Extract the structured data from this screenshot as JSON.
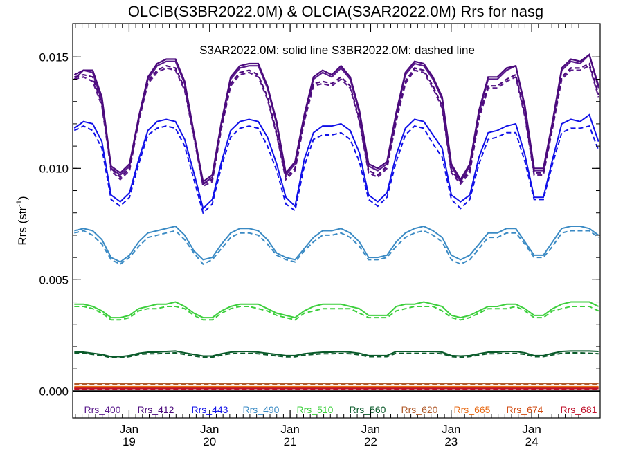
{
  "chart_data": {
    "type": "line",
    "title": "OLCIB(S3BR2022.0M) & OLCIA(S3AR2022.0M)  Rrs for nasg",
    "annotation": "S3AR2022.0M: solid line   S3BR2022.0M: dashed line",
    "ylabel": "Rrs (str",
    "ylabel_sup": "-1",
    "ylabel_close": ")",
    "ylim": [
      -0.0012,
      0.0165
    ],
    "xlim": [
      2018.3,
      2024.85
    ],
    "yticks": [
      {
        "value": 0.0,
        "label": "0.000"
      },
      {
        "value": 0.005,
        "label": "0.005"
      },
      {
        "value": 0.01,
        "label": "0.010"
      },
      {
        "value": 0.015,
        "label": "0.015"
      }
    ],
    "xticks": [
      {
        "value": 2019.0,
        "month": "Jan",
        "year": "19"
      },
      {
        "value": 2020.0,
        "month": "Jan",
        "year": "20"
      },
      {
        "value": 2021.0,
        "month": "Jan",
        "year": "21"
      },
      {
        "value": 2022.0,
        "month": "Jan",
        "year": "22"
      },
      {
        "value": 2023.0,
        "month": "Jan",
        "year": "23"
      },
      {
        "value": 2024.0,
        "month": "Jan",
        "year": "24"
      }
    ],
    "series": [
      {
        "name": "Rrs_400",
        "color": "#5a1a8c",
        "solid": [
          0.014,
          0.0144,
          0.0143,
          0.013,
          0.01,
          0.0097,
          0.0101,
          0.0122,
          0.014,
          0.0146,
          0.0148,
          0.0148,
          0.0138,
          0.0115,
          0.0093,
          0.0096,
          0.012,
          0.014,
          0.0145,
          0.0146,
          0.0146,
          0.0136,
          0.012,
          0.0097,
          0.0102,
          0.0123,
          0.014,
          0.0143,
          0.0141,
          0.0145,
          0.014,
          0.0125,
          0.0101,
          0.0099,
          0.0102,
          0.0124,
          0.0142,
          0.0147,
          0.0146,
          0.014,
          0.0131,
          0.0101,
          0.0094,
          0.0101,
          0.0125,
          0.014,
          0.014,
          0.0144,
          0.0146,
          0.0127,
          0.0099,
          0.0099,
          0.012,
          0.0144,
          0.0148,
          0.0147,
          0.0151,
          0.0136
        ],
        "dashed": [
          0.014,
          0.0141,
          0.0139,
          0.0128,
          0.0099,
          0.0095,
          0.0099,
          0.0121,
          0.0138,
          0.0143,
          0.0145,
          0.0144,
          0.0135,
          0.0114,
          0.0092,
          0.0094,
          0.0118,
          0.0137,
          0.0142,
          0.0143,
          0.0141,
          0.0131,
          0.0115,
          0.0095,
          0.0099,
          0.0121,
          0.0137,
          0.0138,
          0.0137,
          0.014,
          0.0136,
          0.0121,
          0.0098,
          0.0096,
          0.01,
          0.0121,
          0.0138,
          0.0144,
          0.0143,
          0.0136,
          0.0127,
          0.0098,
          0.0093,
          0.0098,
          0.0122,
          0.0136,
          0.0136,
          0.0139,
          0.0141,
          0.0123,
          0.0097,
          0.0097,
          0.0118,
          0.014,
          0.0144,
          0.0144,
          0.0146,
          0.0132
        ]
      },
      {
        "name": "Rrs_412",
        "color": "#4b0a7c",
        "solid": [
          0.0142,
          0.0144,
          0.0144,
          0.0132,
          0.0101,
          0.0098,
          0.0102,
          0.0123,
          0.0141,
          0.0147,
          0.0149,
          0.0149,
          0.0139,
          0.0116,
          0.0094,
          0.0097,
          0.0121,
          0.0141,
          0.0146,
          0.0147,
          0.0147,
          0.0137,
          0.0121,
          0.0098,
          0.0103,
          0.0124,
          0.0141,
          0.0144,
          0.0142,
          0.0146,
          0.0141,
          0.0126,
          0.0102,
          0.01,
          0.0103,
          0.0125,
          0.0143,
          0.0148,
          0.0147,
          0.0141,
          0.0132,
          0.0102,
          0.0095,
          0.0102,
          0.0126,
          0.0141,
          0.0141,
          0.0145,
          0.0146,
          0.0128,
          0.01,
          0.01,
          0.0121,
          0.0145,
          0.0149,
          0.0148,
          0.0151,
          0.0137
        ],
        "dashed": [
          0.0141,
          0.0142,
          0.0141,
          0.0129,
          0.01,
          0.0096,
          0.01,
          0.0122,
          0.0139,
          0.0144,
          0.0146,
          0.0145,
          0.0136,
          0.0115,
          0.0093,
          0.0095,
          0.0119,
          0.0138,
          0.0143,
          0.0144,
          0.0142,
          0.0132,
          0.0116,
          0.0096,
          0.01,
          0.0122,
          0.0138,
          0.0139,
          0.0138,
          0.0141,
          0.0137,
          0.0122,
          0.0099,
          0.0097,
          0.0101,
          0.0122,
          0.0139,
          0.0145,
          0.0144,
          0.0137,
          0.0128,
          0.0099,
          0.0094,
          0.0099,
          0.0123,
          0.0137,
          0.0137,
          0.014,
          0.0142,
          0.0124,
          0.0098,
          0.0098,
          0.0119,
          0.0141,
          0.0145,
          0.0145,
          0.0147,
          0.0133
        ]
      },
      {
        "name": "Rrs_443",
        "color": "#1010e8",
        "solid": [
          0.0118,
          0.0121,
          0.012,
          0.0112,
          0.0088,
          0.0085,
          0.0089,
          0.0104,
          0.0117,
          0.0121,
          0.0122,
          0.0121,
          0.0113,
          0.0098,
          0.0082,
          0.0086,
          0.0103,
          0.0117,
          0.0121,
          0.0122,
          0.0121,
          0.0114,
          0.0102,
          0.0087,
          0.0083,
          0.0104,
          0.0116,
          0.0119,
          0.0119,
          0.012,
          0.0117,
          0.0107,
          0.0088,
          0.0085,
          0.0089,
          0.0106,
          0.0118,
          0.0122,
          0.0121,
          0.0115,
          0.0109,
          0.0088,
          0.0085,
          0.0088,
          0.0105,
          0.0116,
          0.0117,
          0.0119,
          0.012,
          0.0106,
          0.0087,
          0.0087,
          0.0104,
          0.012,
          0.0122,
          0.0121,
          0.0124,
          0.0112
        ],
        "dashed": [
          0.0117,
          0.0119,
          0.0117,
          0.0109,
          0.0086,
          0.0083,
          0.0087,
          0.0102,
          0.0115,
          0.0118,
          0.0119,
          0.0118,
          0.011,
          0.0095,
          0.008,
          0.0084,
          0.0101,
          0.0114,
          0.0118,
          0.0119,
          0.0118,
          0.011,
          0.0099,
          0.0084,
          0.0081,
          0.0101,
          0.0113,
          0.0115,
          0.0115,
          0.0116,
          0.0113,
          0.0103,
          0.0086,
          0.0083,
          0.0087,
          0.0103,
          0.0115,
          0.0119,
          0.0118,
          0.0111,
          0.0105,
          0.0086,
          0.0082,
          0.0086,
          0.0102,
          0.0113,
          0.0114,
          0.0116,
          0.0116,
          0.0103,
          0.0086,
          0.0086,
          0.0102,
          0.0116,
          0.0118,
          0.0118,
          0.0119,
          0.0108
        ]
      },
      {
        "name": "Rrs_490",
        "color": "#3a8ac4",
        "solid": [
          0.0072,
          0.0073,
          0.0072,
          0.0068,
          0.006,
          0.0058,
          0.0061,
          0.0067,
          0.0071,
          0.0072,
          0.0073,
          0.0074,
          0.007,
          0.0063,
          0.0059,
          0.006,
          0.0066,
          0.0071,
          0.0073,
          0.0073,
          0.0072,
          0.0068,
          0.0062,
          0.006,
          0.0059,
          0.0064,
          0.0069,
          0.0072,
          0.0072,
          0.0073,
          0.0071,
          0.0067,
          0.006,
          0.006,
          0.0061,
          0.0067,
          0.0071,
          0.0073,
          0.0074,
          0.0072,
          0.0069,
          0.0061,
          0.0059,
          0.0061,
          0.0066,
          0.0071,
          0.0071,
          0.0073,
          0.0073,
          0.0067,
          0.0061,
          0.0061,
          0.0067,
          0.0073,
          0.0074,
          0.0074,
          0.0073,
          0.007
        ],
        "dashed": [
          0.0071,
          0.0072,
          0.007,
          0.0066,
          0.0059,
          0.0057,
          0.006,
          0.0065,
          0.0069,
          0.007,
          0.0071,
          0.0072,
          0.0068,
          0.0062,
          0.0057,
          0.0059,
          0.0064,
          0.0069,
          0.0071,
          0.0071,
          0.007,
          0.0066,
          0.0061,
          0.0059,
          0.0058,
          0.0063,
          0.0067,
          0.007,
          0.007,
          0.0071,
          0.0069,
          0.0065,
          0.0059,
          0.0059,
          0.006,
          0.0065,
          0.0069,
          0.0071,
          0.0072,
          0.007,
          0.0067,
          0.0059,
          0.0057,
          0.0059,
          0.0064,
          0.0069,
          0.0069,
          0.0071,
          0.0071,
          0.0066,
          0.006,
          0.006,
          0.0065,
          0.0071,
          0.0072,
          0.0072,
          0.0072,
          0.0069
        ]
      },
      {
        "name": "Rrs_510",
        "color": "#3ccf3c",
        "solid": [
          0.0039,
          0.0039,
          0.0038,
          0.0036,
          0.0033,
          0.0033,
          0.0034,
          0.0037,
          0.0038,
          0.0039,
          0.0039,
          0.004,
          0.0038,
          0.0035,
          0.0033,
          0.0033,
          0.0036,
          0.0038,
          0.0039,
          0.0039,
          0.0039,
          0.0037,
          0.0035,
          0.0034,
          0.0033,
          0.0036,
          0.0038,
          0.0039,
          0.0039,
          0.0039,
          0.0038,
          0.0037,
          0.0034,
          0.0034,
          0.0034,
          0.0038,
          0.0039,
          0.0039,
          0.004,
          0.0039,
          0.0038,
          0.0034,
          0.0033,
          0.0034,
          0.0036,
          0.0038,
          0.0038,
          0.0039,
          0.0039,
          0.0037,
          0.0034,
          0.0034,
          0.0037,
          0.0039,
          0.004,
          0.004,
          0.004,
          0.0038
        ],
        "dashed": [
          0.0038,
          0.0038,
          0.0037,
          0.0035,
          0.0032,
          0.0032,
          0.0033,
          0.0036,
          0.0037,
          0.0037,
          0.0038,
          0.0038,
          0.0037,
          0.0034,
          0.0032,
          0.0032,
          0.0035,
          0.0037,
          0.0038,
          0.0038,
          0.0037,
          0.0036,
          0.0034,
          0.0033,
          0.0032,
          0.0035,
          0.0036,
          0.0037,
          0.0037,
          0.0037,
          0.0037,
          0.0035,
          0.0033,
          0.0033,
          0.0033,
          0.0036,
          0.0037,
          0.0038,
          0.0038,
          0.0038,
          0.0036,
          0.0033,
          0.0032,
          0.0033,
          0.0035,
          0.0037,
          0.0037,
          0.0037,
          0.0038,
          0.0036,
          0.0033,
          0.0033,
          0.0036,
          0.0037,
          0.0038,
          0.0038,
          0.0038,
          0.0036
        ]
      },
      {
        "name": "Rrs_560",
        "color": "#0a5a2a",
        "solid": [
          0.00175,
          0.00175,
          0.0017,
          0.00165,
          0.00155,
          0.00155,
          0.0016,
          0.0017,
          0.00175,
          0.00175,
          0.00178,
          0.0018,
          0.00172,
          0.00165,
          0.00158,
          0.00158,
          0.00168,
          0.00175,
          0.00178,
          0.00178,
          0.00175,
          0.0017,
          0.00165,
          0.0016,
          0.0016,
          0.00168,
          0.00172,
          0.00175,
          0.00175,
          0.00178,
          0.00175,
          0.0017,
          0.0016,
          0.0016,
          0.0016,
          0.00178,
          0.00178,
          0.00178,
          0.00178,
          0.00178,
          0.00175,
          0.0016,
          0.00158,
          0.0016,
          0.00168,
          0.00175,
          0.00175,
          0.00178,
          0.00178,
          0.00172,
          0.0016,
          0.0016,
          0.0017,
          0.00178,
          0.0018,
          0.0018,
          0.0018,
          0.00178
        ],
        "dashed": [
          0.0017,
          0.0017,
          0.00165,
          0.0016,
          0.0015,
          0.0015,
          0.00155,
          0.00165,
          0.00168,
          0.00168,
          0.0017,
          0.00172,
          0.00165,
          0.00158,
          0.00152,
          0.00152,
          0.00162,
          0.00168,
          0.0017,
          0.0017,
          0.00168,
          0.00163,
          0.00158,
          0.00154,
          0.00154,
          0.00162,
          0.00165,
          0.00168,
          0.00168,
          0.0017,
          0.00168,
          0.00163,
          0.00155,
          0.00155,
          0.00155,
          0.0017,
          0.0017,
          0.0017,
          0.0017,
          0.0017,
          0.00168,
          0.00155,
          0.00152,
          0.00155,
          0.00162,
          0.00168,
          0.00168,
          0.0017,
          0.0017,
          0.00165,
          0.00155,
          0.00155,
          0.00163,
          0.0017,
          0.00172,
          0.00172,
          0.0017,
          0.00168
        ]
      },
      {
        "name": "Rrs_620",
        "color": "#b05a2a",
        "constant_solid": 0.00035,
        "constant_dashed": 0.0003
      },
      {
        "name": "Rrs_665",
        "color": "#e86a14",
        "constant_solid": 0.0002,
        "constant_dashed": 0.00017
      },
      {
        "name": "Rrs_674",
        "color": "#d04a10",
        "constant_solid": 0.00016,
        "constant_dashed": 0.00013
      },
      {
        "name": "Rrs_681",
        "color": "#c0102a",
        "constant_solid": 0.00012,
        "constant_dashed": 0.0001
      }
    ],
    "zero_line_color": "#000000",
    "grid": false,
    "legend_placement": "bottom, in a single row inside the plot area"
  }
}
